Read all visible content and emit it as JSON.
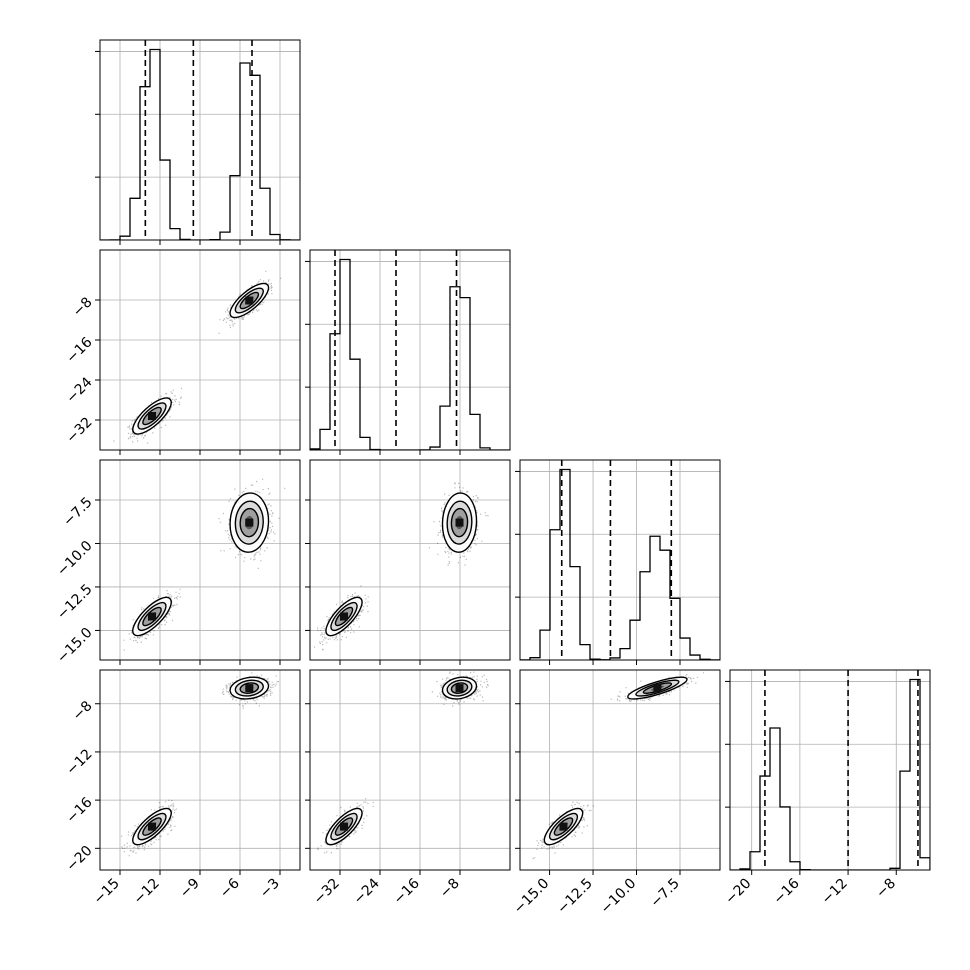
{
  "chart_data": {
    "type": "corner",
    "parameters": [
      "",
      "",
      "",
      ""
    ],
    "ranges": [
      [
        -16.5,
        -1.5
      ],
      [
        -38,
        2
      ],
      [
        -16.7,
        -5.2
      ],
      [
        -21.8,
        -5.2
      ]
    ],
    "ticks": [
      [
        -15,
        -12,
        -9,
        -6,
        -3
      ],
      [
        -32,
        -24,
        -16,
        -8
      ],
      [
        -15.0,
        -12.5,
        -10.0,
        -7.5
      ],
      [
        -20,
        -16,
        -12,
        -8
      ]
    ],
    "tick_labels": [
      [
        "−15",
        "−12",
        "−9",
        "−6",
        "−3"
      ],
      [
        "−32",
        "−24",
        "−16",
        "−8"
      ],
      [
        "−15.0",
        "−12.5",
        "−10.0",
        "−7.5"
      ],
      [
        "−20",
        "−16",
        "−12",
        "−8"
      ]
    ],
    "quantiles": [
      [
        -13.1,
        -9.5,
        -5.1
      ],
      [
        -33.0,
        -20.8,
        -8.7
      ],
      [
        -14.3,
        -11.5,
        -8.0
      ],
      [
        -18.9,
        -12.0,
        -6.2
      ]
    ],
    "modes": [
      [
        {
          "mu": -12.6,
          "sd": 0.72,
          "w": 1.0
        },
        {
          "mu": -5.3,
          "sd": 0.72,
          "w": 0.98
        }
      ],
      [
        {
          "mu": -31.2,
          "sd": 1.8,
          "w": 1.0
        },
        {
          "mu": -8.1,
          "sd": 1.7,
          "w": 0.98
        }
      ],
      [
        {
          "mu": -14.2,
          "sd": 0.55,
          "w": 1.0
        },
        {
          "mu": -8.8,
          "sd": 0.85,
          "w": 0.65
        }
      ],
      [
        {
          "mu": -18.2,
          "sd": 0.75,
          "w": 1.0
        },
        {
          "mu": -6.7,
          "sd": 0.45,
          "w": 1.55
        }
      ]
    ],
    "grid": true,
    "legend": "none"
  }
}
